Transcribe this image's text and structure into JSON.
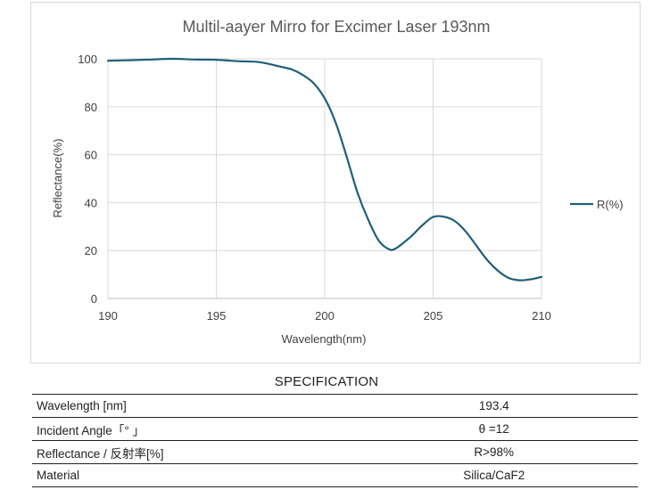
{
  "chart_data": {
    "type": "line",
    "title": "Multil-aayer  Mirro for Excimer Laser 193nm",
    "xlabel": "Wavelength(nm)",
    "ylabel": "Reflectance(%)",
    "xlim": [
      190,
      210
    ],
    "ylim": [
      0,
      100
    ],
    "xticks": [
      "190",
      "195",
      "200",
      "205",
      "210"
    ],
    "yticks": [
      "0",
      "20",
      "40",
      "60",
      "80",
      "100"
    ],
    "grid": "vertical and horizontal",
    "legend_position": "right",
    "line_color": "#1f5f7a",
    "series": [
      {
        "name": "R(%)",
        "x": [
          190,
          191,
          192,
          193,
          194,
          195,
          196,
          197,
          198,
          198.5,
          199,
          199.5,
          200,
          200.5,
          201,
          201.5,
          202,
          202.5,
          203,
          203.3,
          203.6,
          204,
          204.5,
          205,
          205.5,
          206,
          206.5,
          207,
          207.5,
          208,
          208.5,
          209,
          209.5,
          210
        ],
        "y": [
          99.2,
          99.4,
          99.7,
          100,
          99.7,
          99.6,
          99.0,
          98.6,
          96.6,
          95.5,
          93.2,
          89.7,
          83.5,
          73.5,
          59.5,
          44.5,
          33.0,
          24.0,
          20.4,
          21.0,
          23.0,
          26.0,
          30.5,
          34.0,
          34.1,
          32.3,
          28.0,
          22.0,
          16.0,
          11.5,
          8.5,
          7.6,
          8.0,
          9.0
        ]
      }
    ]
  },
  "spec": {
    "title": "SPECIFICATION",
    "rows": [
      {
        "label": "Wavelength [nm]",
        "value": "193.4"
      },
      {
        "label": "Incident Angle「° 」",
        "value": "θ =12"
      },
      {
        "label": "Reflectance / 反射率[%]",
        "value": "R>98%"
      },
      {
        "label": "Material",
        "value": "Silica/CaF2"
      }
    ]
  }
}
